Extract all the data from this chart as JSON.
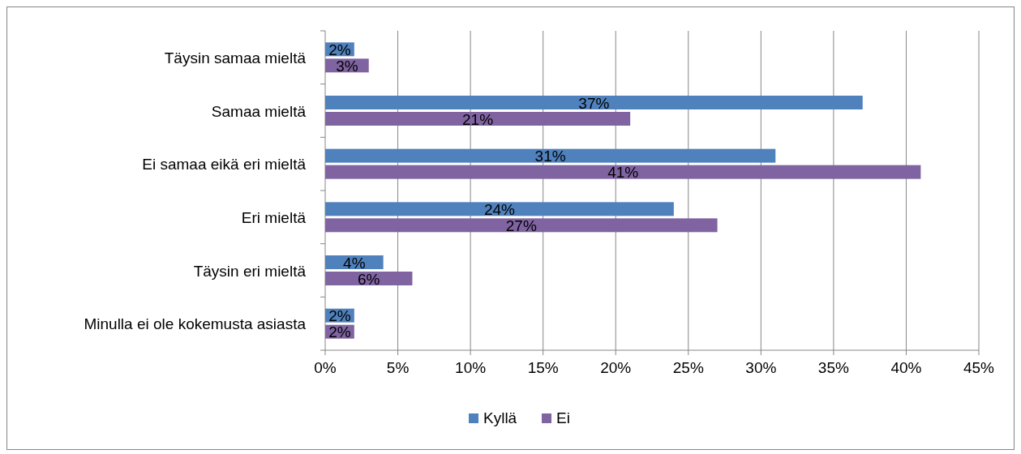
{
  "chart_data": {
    "type": "bar",
    "orientation": "horizontal",
    "categories": [
      "Täysin samaa mieltä",
      "Samaa mieltä",
      "Ei samaa eikä eri mieltä",
      "Eri mieltä",
      "Täysin eri mieltä",
      "Minulla ei ole kokemusta asiasta"
    ],
    "series": [
      {
        "name": "Kyllä",
        "color": "#4f81bd",
        "values": [
          2,
          37,
          31,
          24,
          4,
          2
        ],
        "value_labels": [
          "2%",
          "37%",
          "31%",
          "24%",
          "4%",
          "2%"
        ]
      },
      {
        "name": "Ei",
        "color": "#8064a2",
        "values": [
          3,
          21,
          41,
          27,
          6,
          2
        ],
        "value_labels": [
          "3%",
          "21%",
          "41%",
          "27%",
          "6%",
          "2%"
        ]
      }
    ],
    "xlim": [
      0,
      45
    ],
    "xticks": [
      {
        "value": 0,
        "label": "0%"
      },
      {
        "value": 5,
        "label": "5%"
      },
      {
        "value": 10,
        "label": "10%"
      },
      {
        "value": 15,
        "label": "15%"
      },
      {
        "value": 20,
        "label": "20%"
      },
      {
        "value": 25,
        "label": "25%"
      },
      {
        "value": 30,
        "label": "30%"
      },
      {
        "value": 35,
        "label": "35%"
      },
      {
        "value": 40,
        "label": "40%"
      },
      {
        "value": 45,
        "label": "45%"
      }
    ],
    "grid": "x",
    "legend": "bottom"
  }
}
